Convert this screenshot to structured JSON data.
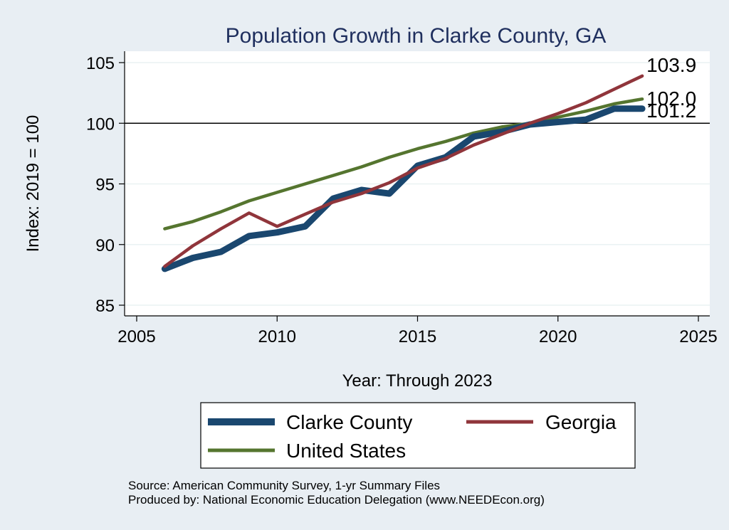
{
  "chart_data": {
    "type": "line",
    "title": "Population Growth in Clarke County, GA",
    "xlabel": "Year: Through 2023",
    "ylabel": "Index: 2019 = 100",
    "xlim": [
      2004.5,
      2025.5
    ],
    "ylim": [
      84,
      106
    ],
    "xticks": [
      2005,
      2010,
      2015,
      2020,
      2025
    ],
    "yticks": [
      85,
      90,
      95,
      100,
      105
    ],
    "reference_line": 100,
    "x": [
      2006,
      2007,
      2008,
      2009,
      2010,
      2011,
      2012,
      2013,
      2014,
      2015,
      2016,
      2017,
      2018,
      2019,
      2020,
      2021,
      2022,
      2023
    ],
    "series": [
      {
        "name": "Clarke  County",
        "color": "#1a476f",
        "values": [
          88.0,
          88.9,
          89.4,
          90.7,
          91.0,
          91.5,
          93.8,
          94.5,
          94.2,
          96.5,
          97.2,
          98.9,
          99.3,
          99.9,
          100.1,
          100.3,
          101.2,
          101.2
        ],
        "end_label": "101.2"
      },
      {
        "name": "Georgia",
        "color": "#90353b",
        "values": [
          88.2,
          89.9,
          91.3,
          92.6,
          91.5,
          92.5,
          93.5,
          94.2,
          95.1,
          96.3,
          97.1,
          98.2,
          99.1,
          100.0,
          100.8,
          101.7,
          102.8,
          103.9
        ],
        "end_label": "103.9"
      },
      {
        "name": "United States",
        "color": "#55752f",
        "values": [
          91.3,
          91.9,
          92.7,
          93.6,
          94.3,
          95.0,
          95.7,
          96.4,
          97.2,
          97.9,
          98.5,
          99.2,
          99.7,
          100.0,
          100.5,
          101.0,
          101.6,
          102.0
        ],
        "end_label": "102.0"
      }
    ],
    "legend": [
      "Clarke  County",
      "Georgia",
      "United States"
    ],
    "source_note": "Source: American Community Survey, 1-yr Summary Files",
    "producer_note": "Produced by: National Economic Education Delegation (www.NEEDEcon.org)"
  }
}
